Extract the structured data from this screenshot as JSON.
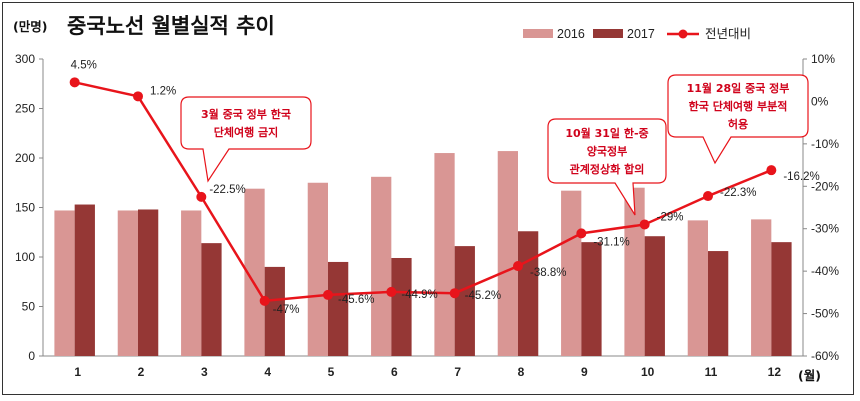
{
  "chart_data": {
    "type": "bar",
    "title": "중국노선 월별실적 추이",
    "y_unit_label": "(만명)",
    "x_unit_label": "(월)",
    "categories": [
      "1",
      "2",
      "3",
      "4",
      "5",
      "6",
      "7",
      "8",
      "9",
      "10",
      "11",
      "12"
    ],
    "ylim": [
      0,
      300
    ],
    "y_ticks": [
      0,
      50,
      100,
      150,
      200,
      250,
      300
    ],
    "y2lim": [
      -60,
      10
    ],
    "y2_ticks": [
      "10%",
      "0%",
      "-10%",
      "-20%",
      "-30%",
      "-40%",
      "-50%",
      "-60%"
    ],
    "y2_tick_values": [
      10,
      0,
      -10,
      -20,
      -30,
      -40,
      -50,
      -60
    ],
    "series": [
      {
        "name": "2016",
        "type": "bar",
        "color": "#d99694",
        "values": [
          147,
          147,
          147,
          169,
          175,
          181,
          205,
          207,
          167,
          170,
          137,
          138
        ]
      },
      {
        "name": "2017",
        "type": "bar",
        "color": "#953735",
        "values": [
          153,
          148,
          114,
          90,
          95,
          99,
          111,
          126,
          115,
          121,
          106,
          115
        ]
      },
      {
        "name": "전년대비",
        "type": "line",
        "axis": "right",
        "color": "#e8141b",
        "values": [
          4.5,
          1.2,
          -22.5,
          -47,
          -45.6,
          -44.9,
          -45.2,
          -38.8,
          -31.1,
          -29,
          -22.3,
          -16.2
        ],
        "labels": [
          "4.5%",
          "1.2%",
          "-22.5%",
          "-47%",
          "-45.6%",
          "-44.9%",
          "-45.2%",
          "-38.8%",
          "-31.1%",
          "-29%",
          "-22.3%",
          "-16.2%"
        ]
      }
    ],
    "annotations": [
      {
        "month": "3",
        "lines": [
          "3월 중국 정부 한국",
          "단체여행 금지"
        ]
      },
      {
        "month": "10",
        "lines": [
          "10월 31일 한-중",
          "양국정부",
          "관계정상화 합의"
        ]
      },
      {
        "month": "11",
        "lines": [
          "11월 28일 중국 정부",
          "한국 단체여행 부분적",
          "허용"
        ]
      }
    ],
    "legend_position": "top-right",
    "grid": false
  }
}
